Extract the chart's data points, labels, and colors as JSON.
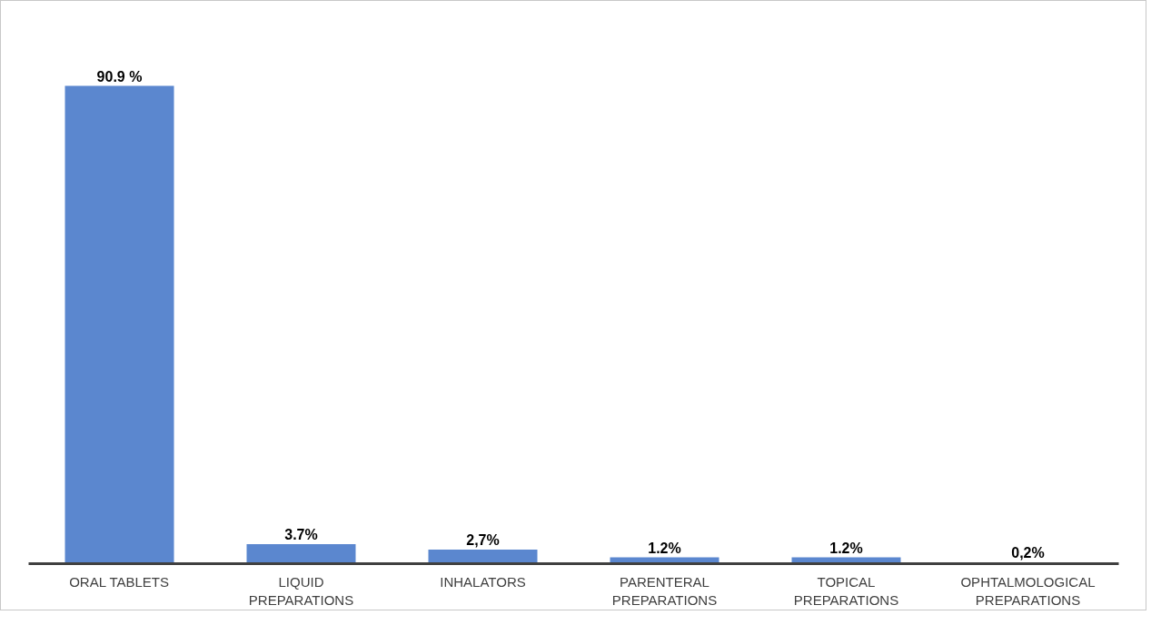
{
  "chart_data": {
    "type": "bar",
    "categories": [
      "ORAL TABLETS",
      "LIQUID PREPARATIONS",
      "INHALATORS",
      "PARENTERAL PREPARATIONS",
      "TOPICAL PREPARATIONS",
      "OPHTALMOLOGICAL PREPARATIONS"
    ],
    "values": [
      90.9,
      3.7,
      2.7,
      1.2,
      1.2,
      0.2
    ],
    "value_labels": [
      "90.9 %",
      "3.7%",
      "2,7%",
      "1.2%",
      "1.2%",
      "0,2%"
    ],
    "color": "#5b87cf"
  }
}
